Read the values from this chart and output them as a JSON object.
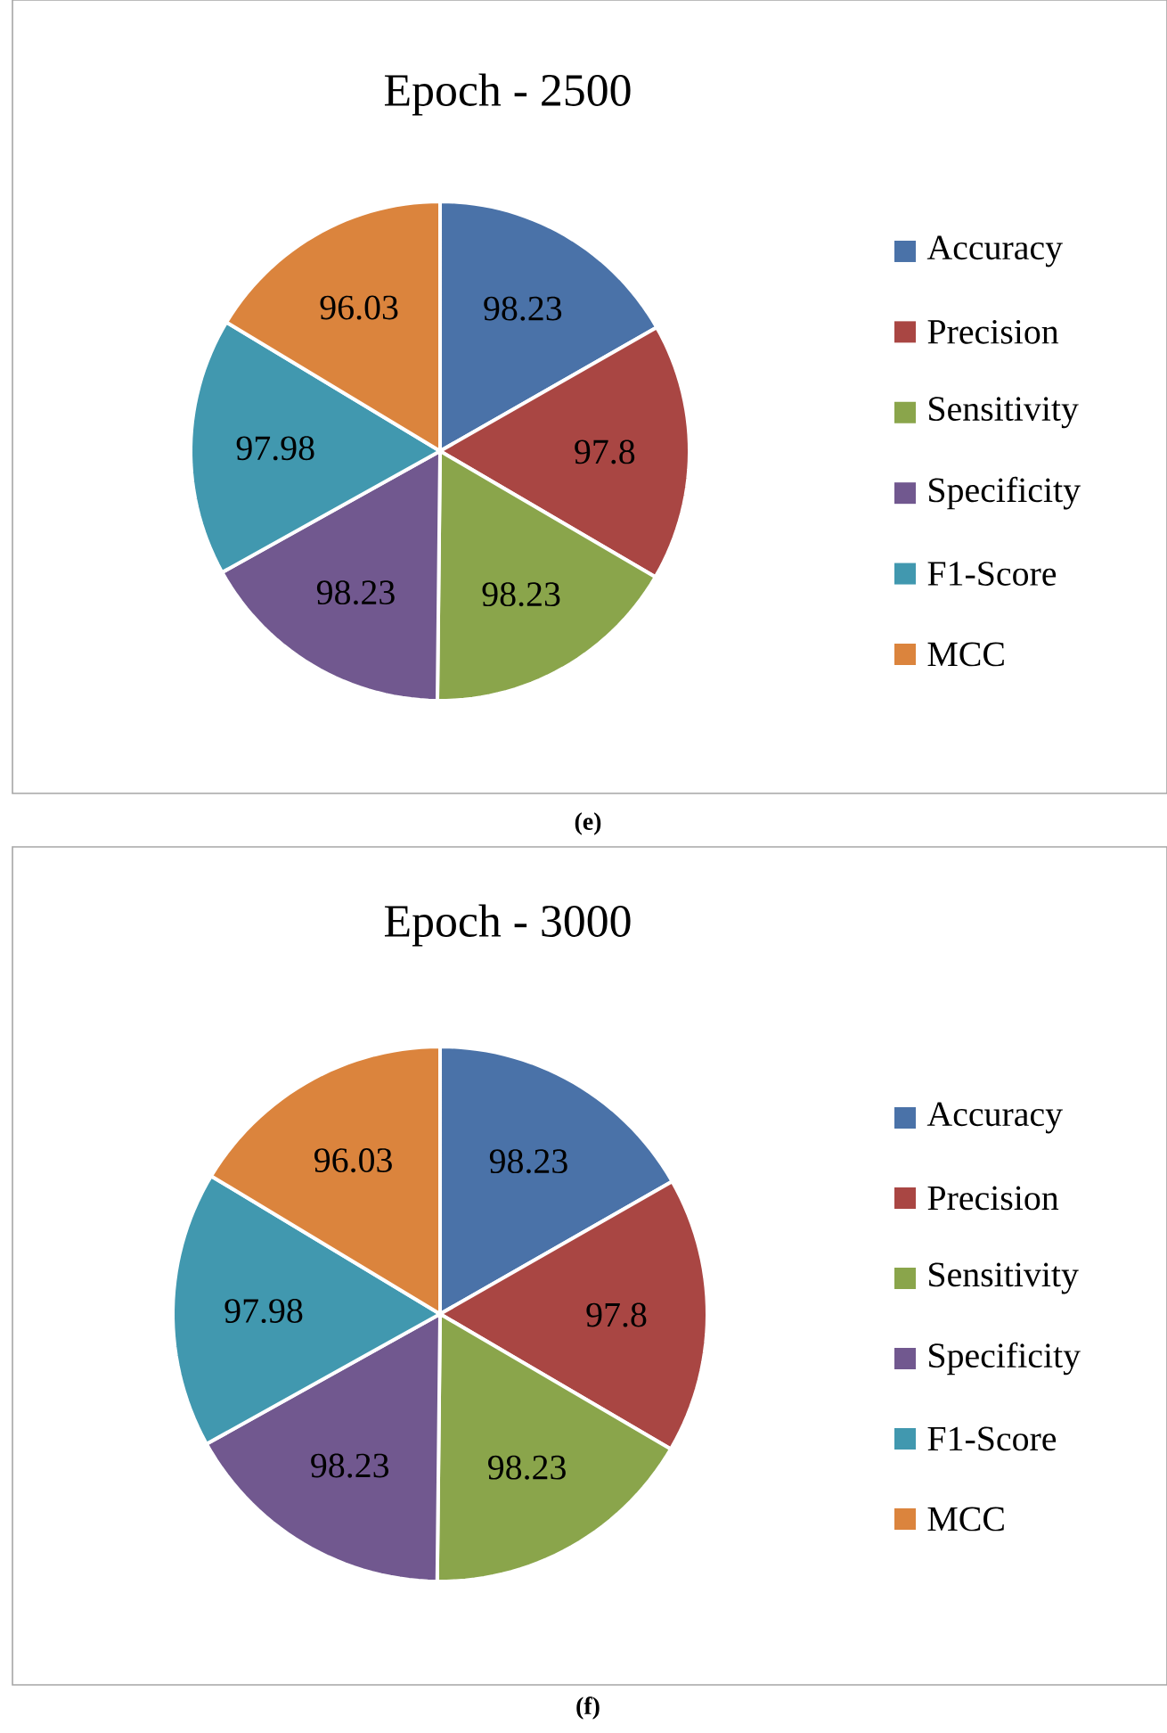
{
  "chart_data": [
    {
      "type": "pie",
      "title": "Epoch - 2500",
      "categories": [
        "Accuracy",
        "Precision",
        "Sensitivity",
        "Specificity",
        "F1-Score",
        "MCC"
      ],
      "values": [
        98.23,
        97.8,
        98.23,
        98.23,
        97.98,
        96.03
      ],
      "colors": [
        "#4a72a8",
        "#a94643",
        "#8aa54b",
        "#71588f",
        "#4198af",
        "#db843d"
      ],
      "data_labels": true,
      "legend": "right",
      "annotations": [
        "(e)"
      ]
    },
    {
      "type": "pie",
      "title": "Epoch - 3000",
      "categories": [
        "Accuracy",
        "Precision",
        "Sensitivity",
        "Specificity",
        "F1-Score",
        "MCC"
      ],
      "values": [
        98.23,
        97.8,
        98.23,
        98.23,
        97.98,
        96.03
      ],
      "colors": [
        "#4a72a8",
        "#a94643",
        "#8aa54b",
        "#71588f",
        "#4198af",
        "#db843d"
      ],
      "data_labels": true,
      "legend": "right",
      "annotations": [
        "(f)"
      ]
    }
  ]
}
